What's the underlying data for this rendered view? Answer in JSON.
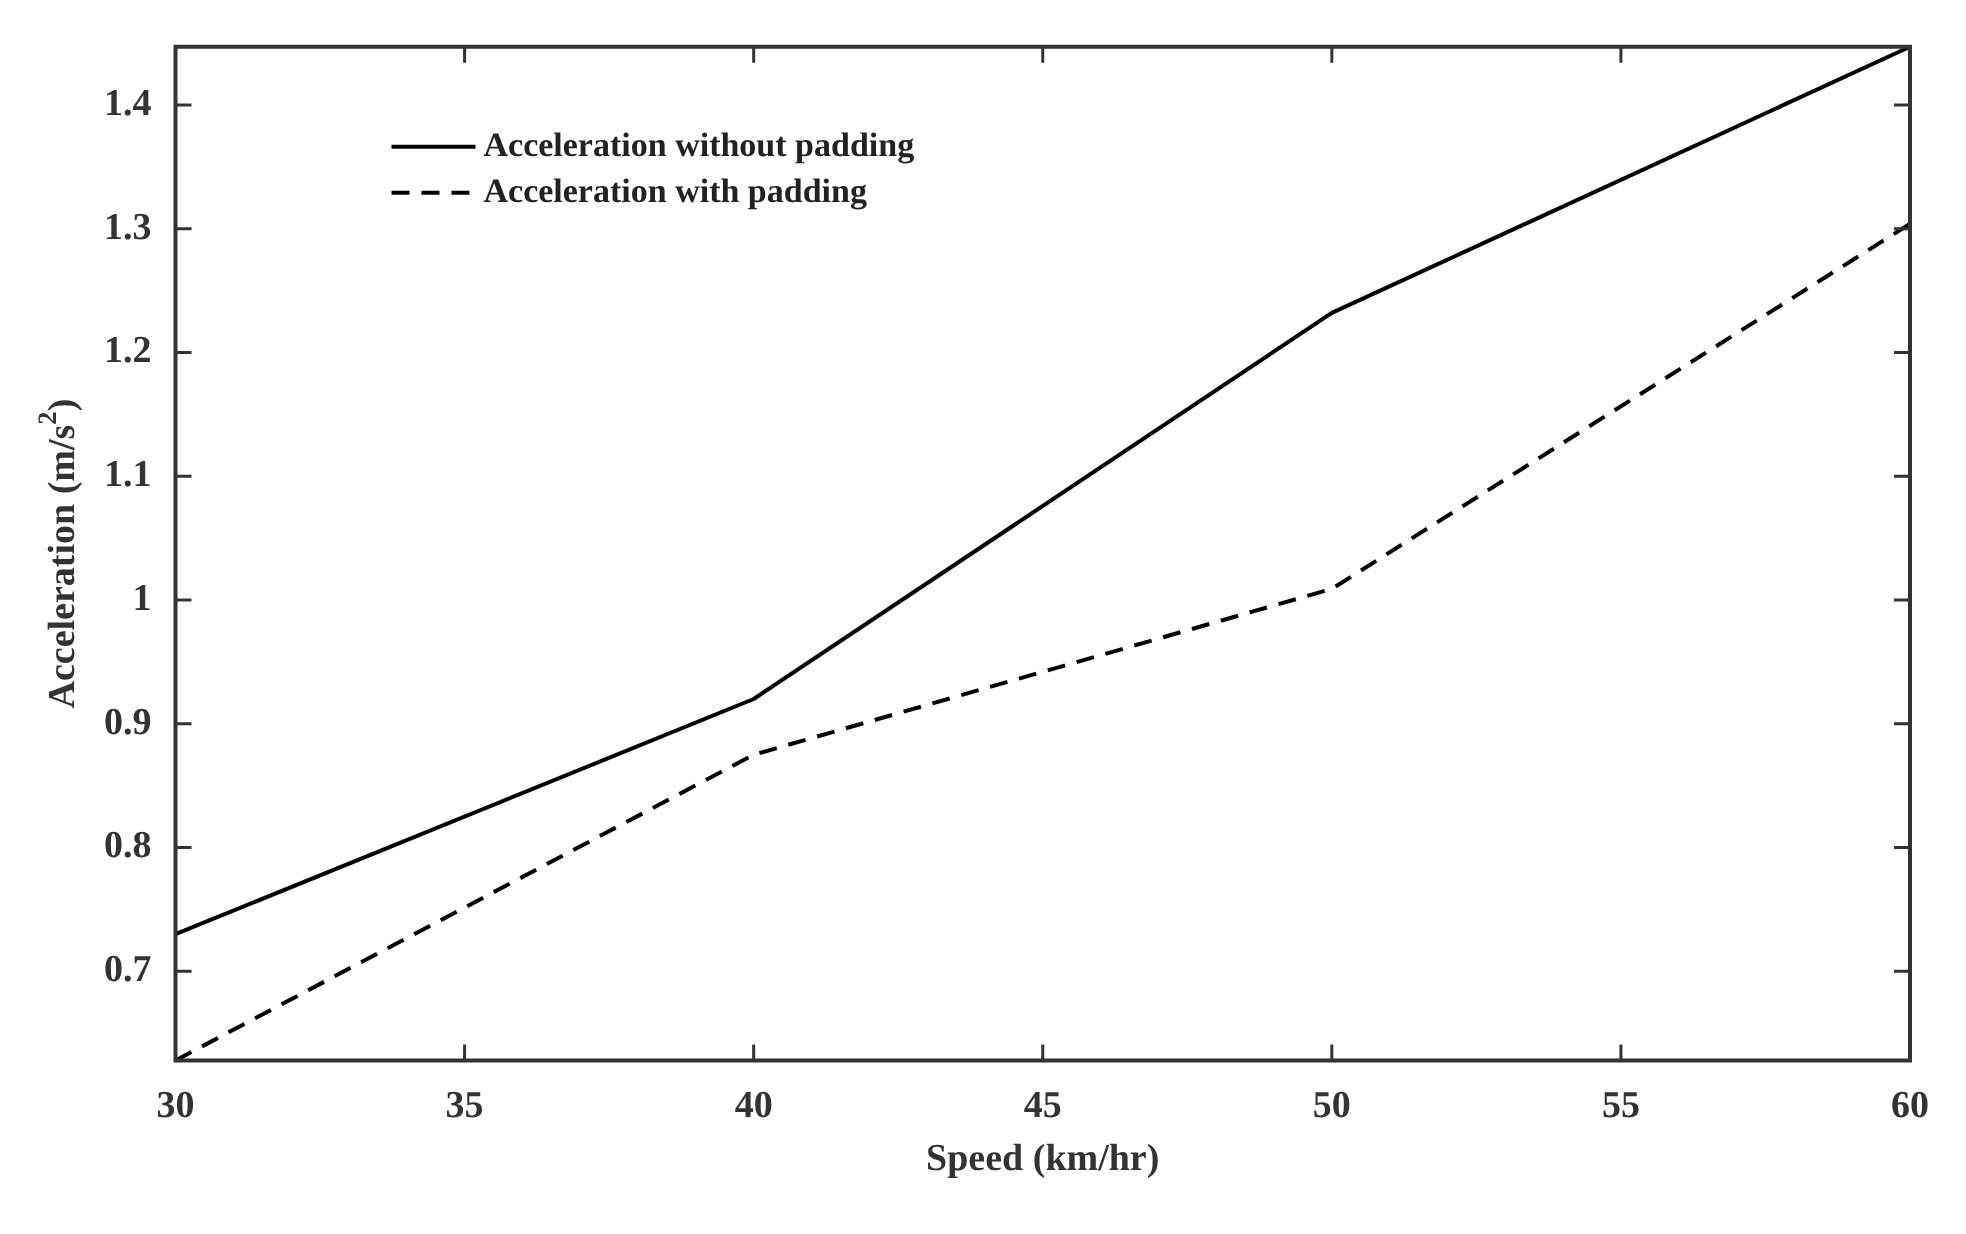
{
  "chart_data": {
    "type": "line",
    "xlabel": "Speed (km/hr)",
    "ylabel": "Acceleration (m/s$^{2}$)",
    "x": [
      30,
      40,
      50,
      60
    ],
    "series": [
      {
        "name": "Acceleration without padding",
        "color": "#000000",
        "line_style": "solid",
        "values": [
          0.73,
          0.92,
          1.232,
          1.447
        ]
      },
      {
        "name": "Acceleration with padding",
        "color": "#000000",
        "line_style": "dashed",
        "values": [
          0.628,
          0.875,
          1.009,
          1.304
        ]
      }
    ],
    "xlim": [
      30,
      60
    ],
    "xticks": [
      30,
      35,
      40,
      45,
      50,
      55,
      60
    ],
    "ylim": [
      0.628,
      1.447
    ],
    "yticks": [
      0.7,
      0.8,
      0.9,
      1,
      1.1,
      1.2,
      1.3,
      1.4
    ],
    "grid": false,
    "legend": "top left",
    "marker": "none"
  }
}
